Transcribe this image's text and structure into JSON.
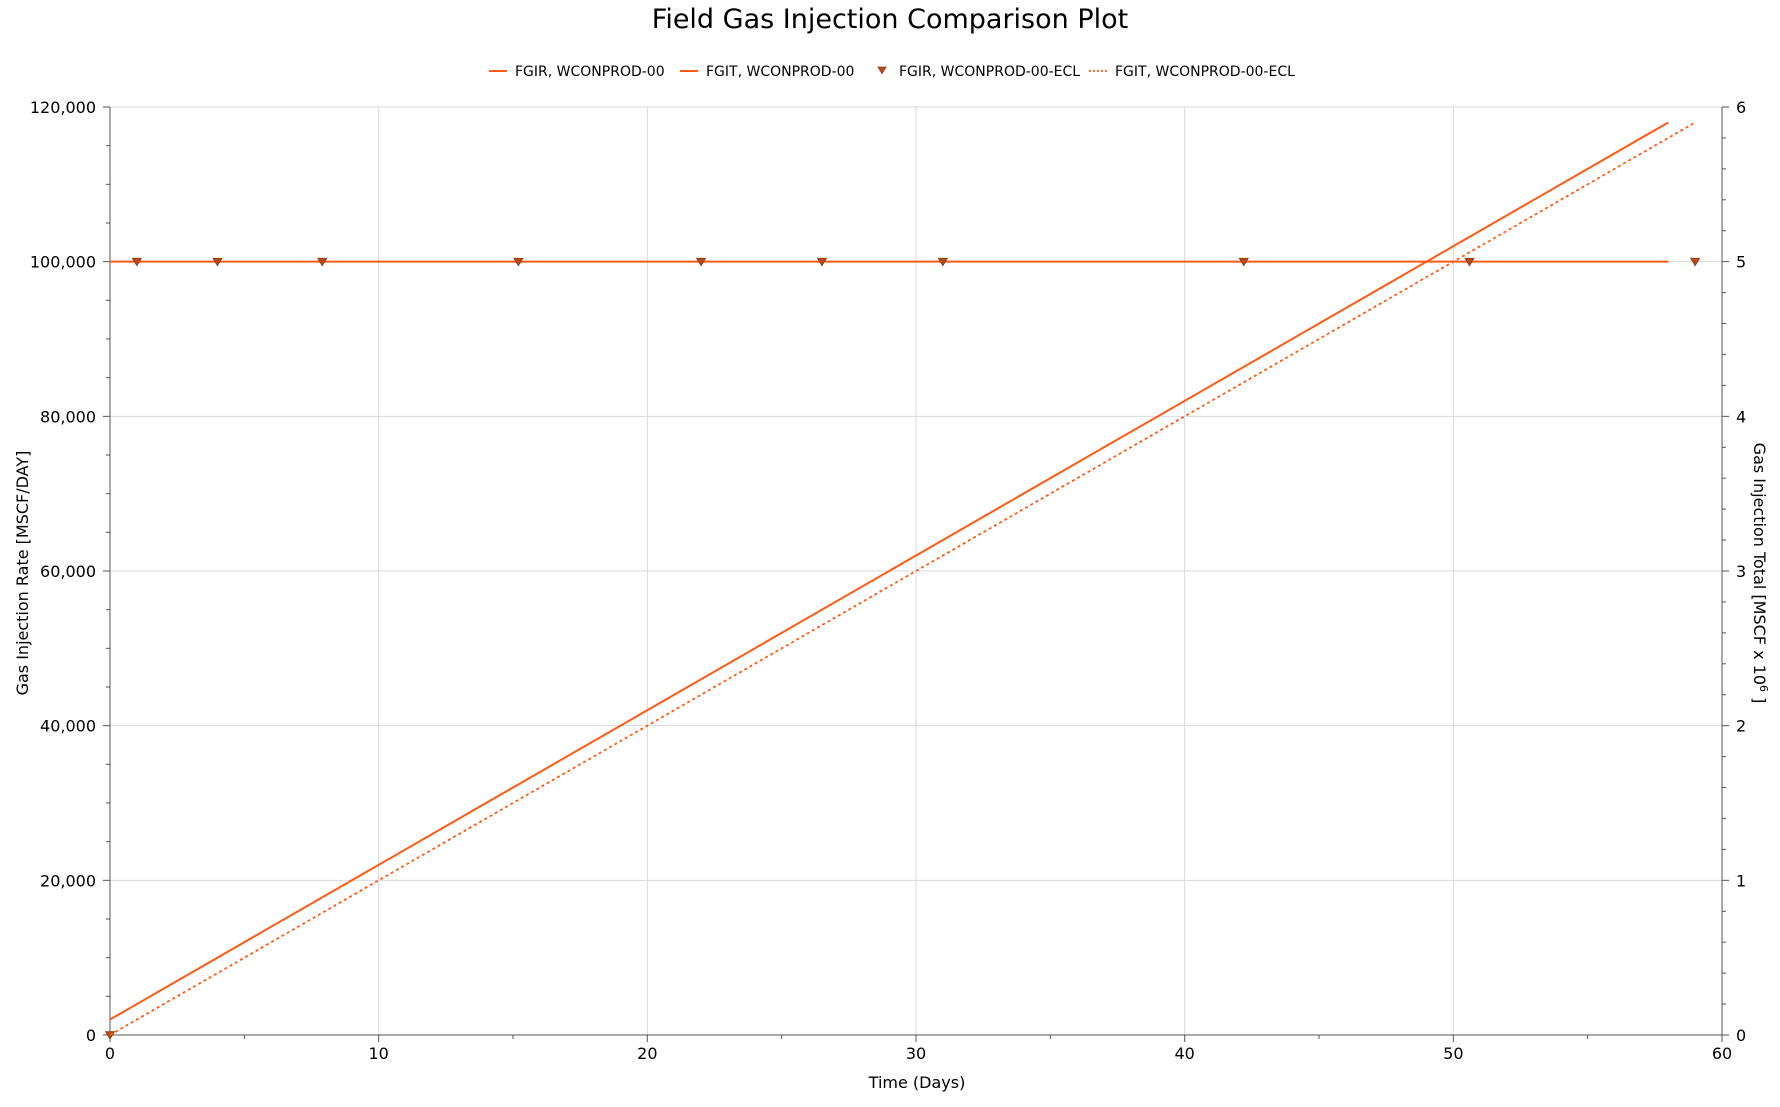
{
  "chart_data": {
    "type": "line",
    "title": "Field Gas Injection Comparison Plot",
    "xlabel": "Time (Days)",
    "ylabel": "Gas Injection Rate [MSCF/DAY]",
    "y2label_prefix": "Gas Injection Total [MSCF x 10",
    "y2label_exp": "6",
    "y2label_suffix": " ]",
    "xlim": [
      0,
      60
    ],
    "ylim": [
      0,
      120000
    ],
    "y2lim": [
      0,
      6
    ],
    "grid": true,
    "legend_position": "top-center",
    "x_ticks": [
      "0",
      "10",
      "20",
      "30",
      "40",
      "50",
      "60"
    ],
    "y_ticks": [
      "0",
      "20,000",
      "40,000",
      "60,000",
      "80,000",
      "100,000",
      "120,000"
    ],
    "y2_ticks": [
      "0",
      "1",
      "2",
      "3",
      "4",
      "5",
      "6"
    ],
    "series": [
      {
        "name": "FGIR, WCONPROD-00",
        "axis": "left",
        "style": "solid",
        "color": "#ff5a14",
        "x": [
          0,
          58
        ],
        "y": [
          100000,
          100000
        ]
      },
      {
        "name": "FGIT, WCONPROD-00",
        "axis": "right",
        "style": "solid",
        "color": "#ff5a14",
        "x": [
          0,
          58
        ],
        "y": [
          0.1,
          5.9
        ]
      },
      {
        "name": "FGIR, WCONPROD-00-ECL",
        "axis": "left",
        "style": "markers",
        "color": "#b84a18",
        "x": [
          0,
          1,
          4,
          7.9,
          15.2,
          22,
          26.5,
          31,
          42.2,
          50.6,
          59
        ],
        "y": [
          0,
          100000,
          100000,
          100000,
          100000,
          100000,
          100000,
          100000,
          100000,
          100000,
          100000
        ]
      },
      {
        "name": "FGIT, WCONPROD-00-ECL",
        "axis": "right",
        "style": "dotted",
        "color": "#ff5a14",
        "x": [
          0,
          59
        ],
        "y": [
          0,
          5.9
        ]
      }
    ]
  }
}
